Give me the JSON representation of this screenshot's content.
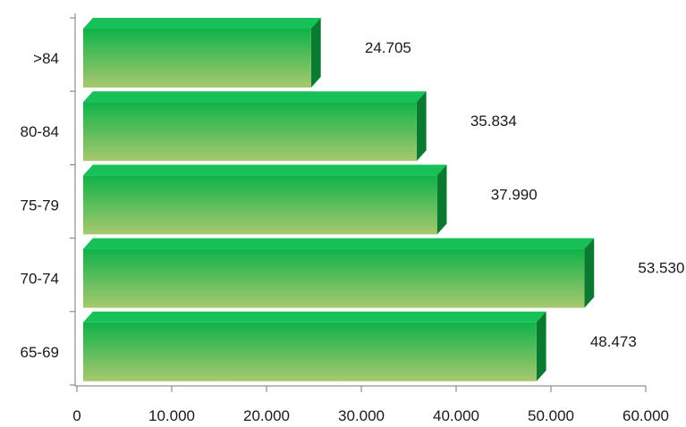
{
  "chart_data": {
    "type": "bar",
    "orientation": "horizontal",
    "style": "3d",
    "categories": [
      ">84",
      "80-84",
      "75-79",
      "70-74",
      "65-69"
    ],
    "values": [
      24705,
      35834,
      37990,
      53530,
      48473
    ],
    "value_labels": [
      "24.705",
      "35.834",
      "37.990",
      "53.530",
      "48.473"
    ],
    "xlim": [
      0,
      60000
    ],
    "x_ticks": [
      0,
      10000,
      20000,
      30000,
      40000,
      50000,
      60000
    ],
    "x_tick_labels": [
      "0",
      "10.000",
      "20.000",
      "30.000",
      "40.000",
      "50.000",
      "60.000"
    ],
    "title": "",
    "xlabel": "",
    "ylabel": "",
    "grid": false,
    "legend": "none",
    "colors": {
      "bar_top": "#0fb24a",
      "bar_bottom": "#a8c86e",
      "bar_side": "#0a7a30",
      "bar_cap": "#17c158",
      "axis": "#777777",
      "text": "#1a1a1a"
    }
  }
}
